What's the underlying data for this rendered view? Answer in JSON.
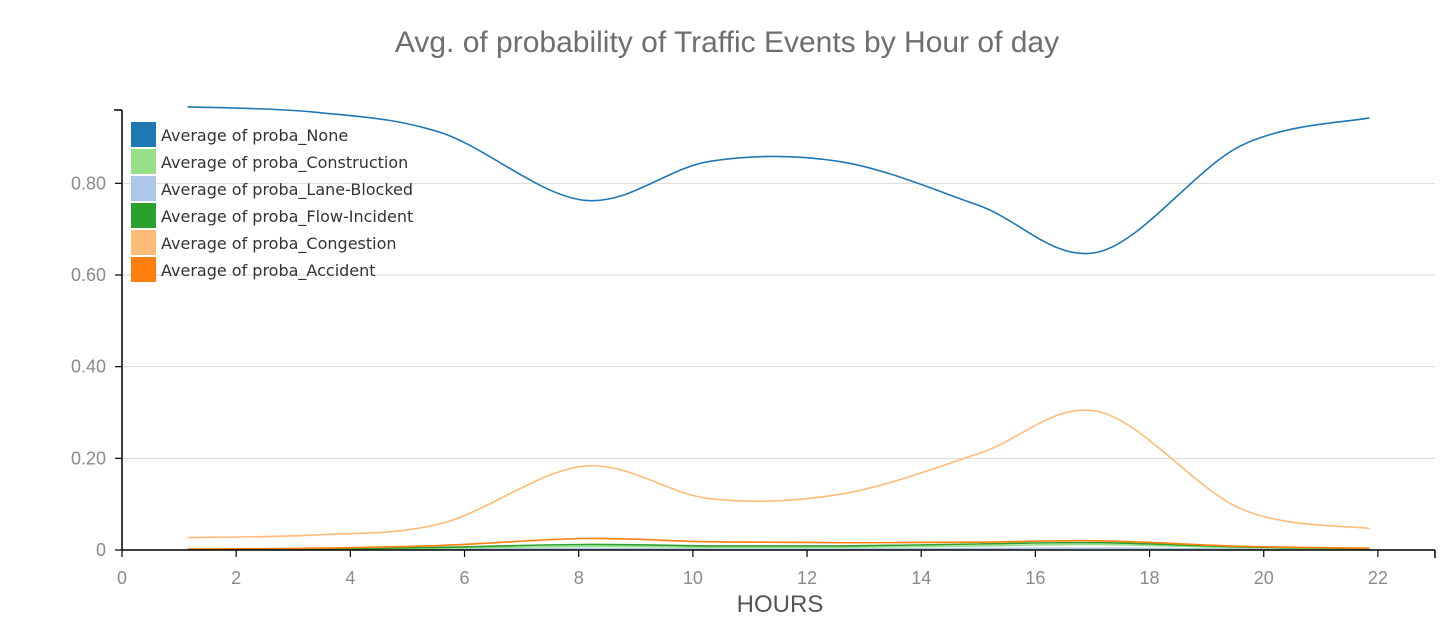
{
  "chart_data": {
    "type": "line",
    "title": "Avg. of probability of Traffic Events by Hour of day",
    "xlabel": "HOURS",
    "ylabel": "",
    "xlim": [
      0,
      23
    ],
    "ylim": [
      0,
      0.96
    ],
    "x_ticks": [
      0,
      2,
      4,
      6,
      8,
      10,
      12,
      14,
      16,
      18,
      20,
      22
    ],
    "y_ticks": [
      {
        "value": 0,
        "label": "0"
      },
      {
        "value": 0.2,
        "label": "0.20"
      },
      {
        "value": 0.4,
        "label": "0.40"
      },
      {
        "value": 0.6,
        "label": "0.60"
      },
      {
        "value": 0.8,
        "label": "0.80"
      }
    ],
    "grid": true,
    "legend_position": "top-left",
    "x": [
      1.15,
      3.4,
      5.6,
      8.1,
      10.3,
      12.6,
      15.0,
      17.1,
      19.6,
      21.85
    ],
    "series": [
      {
        "name": "Average of proba_None",
        "color": "#1f77b4",
        "values": [
          0.967,
          0.955,
          0.91,
          0.763,
          0.848,
          0.847,
          0.752,
          0.65,
          0.882,
          0.943
        ]
      },
      {
        "name": "Average of proba_Construction",
        "color": "#98df8a",
        "values": [
          0.001,
          0.002,
          0.004,
          0.008,
          0.006,
          0.006,
          0.009,
          0.012,
          0.005,
          0.002
        ]
      },
      {
        "name": "Average of proba_Lane-Blocked",
        "color": "#aec7e8",
        "values": [
          0.0,
          0.001,
          0.002,
          0.003,
          0.002,
          0.002,
          0.003,
          0.004,
          0.002,
          0.001
        ]
      },
      {
        "name": "Average of proba_Flow-Incident",
        "color": "#2ca02c",
        "values": [
          0.001,
          0.002,
          0.006,
          0.012,
          0.009,
          0.009,
          0.013,
          0.016,
          0.007,
          0.003
        ]
      },
      {
        "name": "Average of proba_Congestion",
        "color": "#ffbb78",
        "values": [
          0.027,
          0.033,
          0.058,
          0.183,
          0.112,
          0.122,
          0.21,
          0.302,
          0.09,
          0.047
        ]
      },
      {
        "name": "Average of proba_Accident",
        "color": "#ff7f0e",
        "values": [
          0.002,
          0.004,
          0.01,
          0.025,
          0.018,
          0.016,
          0.017,
          0.02,
          0.008,
          0.004
        ]
      }
    ]
  }
}
